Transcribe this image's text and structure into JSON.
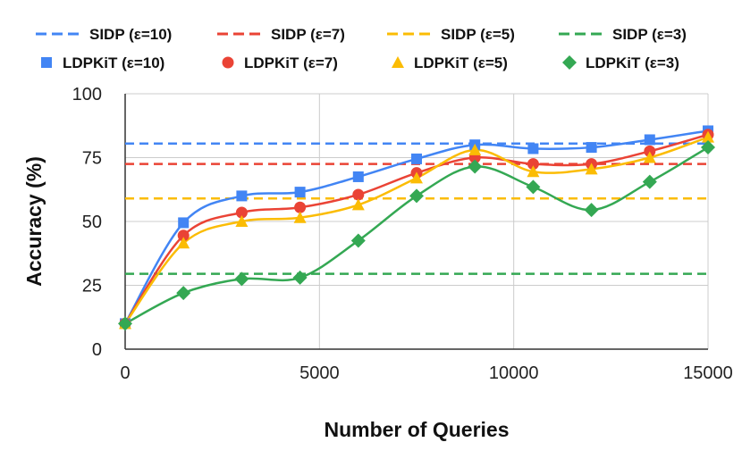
{
  "chart_data": {
    "type": "line",
    "xlabel": "Number of Queries",
    "ylabel": "Accuracy (%)",
    "xlim": [
      0,
      15000
    ],
    "ylim": [
      0,
      100
    ],
    "x_ticks": [
      0,
      5000,
      10000,
      15000
    ],
    "y_ticks": [
      0,
      25,
      50,
      75,
      100
    ],
    "grid": true,
    "legend_position": "top",
    "x": [
      0,
      1500,
      3000,
      4500,
      6000,
      7500,
      9000,
      10500,
      12000,
      13500,
      15000
    ],
    "baselines": [
      {
        "name": "SIDP (ε=10)",
        "value": 80.5,
        "color": "#4285F4"
      },
      {
        "name": "SIDP (ε=7)",
        "value": 72.5,
        "color": "#EA4335"
      },
      {
        "name": "SIDP (ε=5)",
        "value": 59,
        "color": "#FBBC04"
      },
      {
        "name": "SIDP (ε=3)",
        "value": 29.5,
        "color": "#34A853"
      }
    ],
    "series": [
      {
        "name": "LDPKiT (ε=10)",
        "marker": "square",
        "color": "#4285F4",
        "values": [
          10,
          49.5,
          60,
          61.5,
          67.5,
          74.5,
          80,
          78.5,
          79,
          82,
          85.5
        ]
      },
      {
        "name": "LDPKiT (ε=7)",
        "marker": "circle",
        "color": "#EA4335",
        "values": [
          10,
          44.5,
          53.5,
          55.5,
          60.5,
          69,
          75,
          72.5,
          72.5,
          77.5,
          84
        ]
      },
      {
        "name": "LDPKiT (ε=5)",
        "marker": "triangle",
        "color": "#FBBC04",
        "values": [
          10,
          41.5,
          50,
          51.5,
          56.5,
          67,
          78,
          69.5,
          70.5,
          75,
          83
        ]
      },
      {
        "name": "LDPKiT (ε=3)",
        "marker": "diamond",
        "color": "#34A853",
        "values": [
          10,
          22,
          27.5,
          28,
          42.5,
          60,
          71.5,
          63.5,
          54.5,
          65.5,
          79
        ]
      }
    ]
  }
}
